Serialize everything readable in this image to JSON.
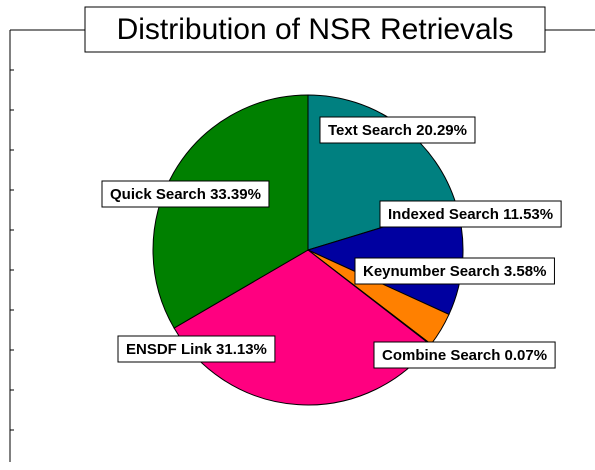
{
  "chart_data": {
    "type": "pie",
    "title": "Distribution of NSR Retrievals",
    "categories": [
      "Text Search",
      "Indexed Search",
      "Keynumber Search",
      "Combine Search",
      "ENSDF Link",
      "Quick Search"
    ],
    "values": [
      20.29,
      11.53,
      3.58,
      0.07,
      31.13,
      33.39
    ],
    "value_labels": [
      "20.29%",
      "11.53%",
      "3.58%",
      "0.07%",
      "31.13%",
      "33.39%"
    ],
    "colors": [
      "#008080",
      "#0000a0",
      "#ff8000",
      "#ffff00",
      "#ff0080",
      "#008000"
    ]
  }
}
